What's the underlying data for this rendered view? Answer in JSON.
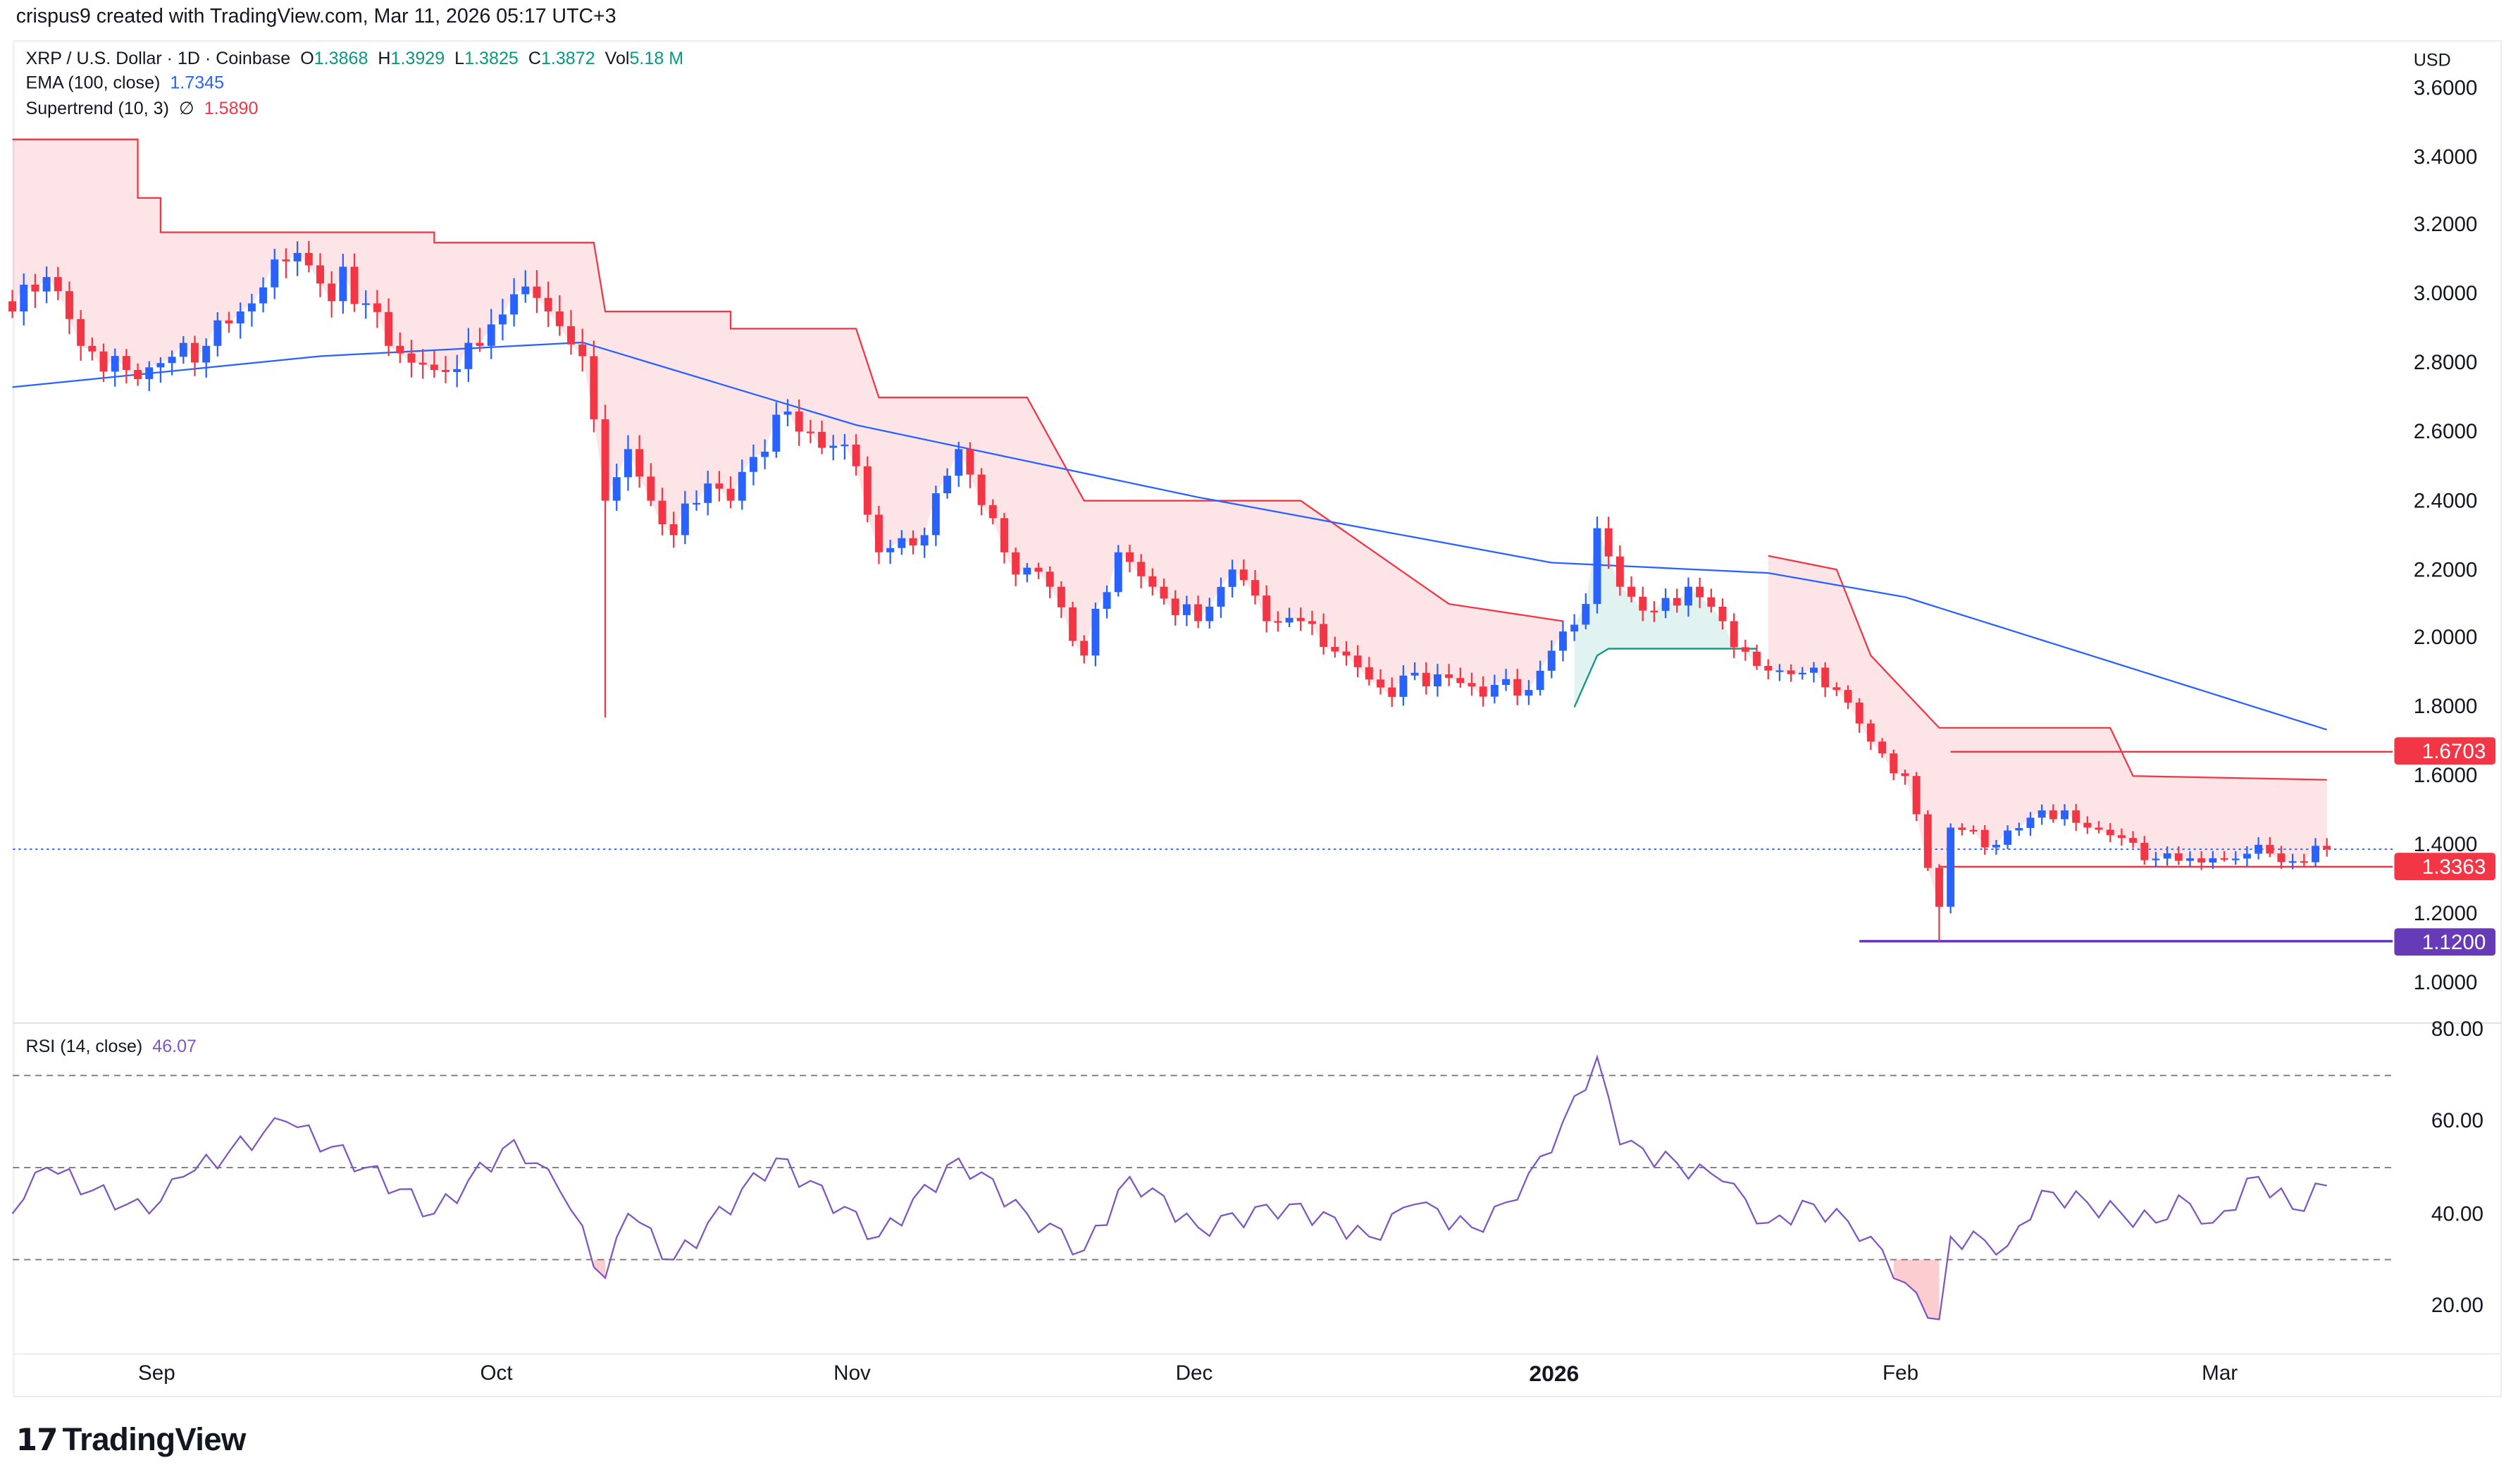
{
  "credit": "crispus9 created with TradingView.com, Mar 11, 2026 05:17 UTC+3",
  "legend": {
    "symbol": "XRP / U.S. Dollar · 1D · Coinbase",
    "open_label": "O",
    "open": "1.3868",
    "high_label": "H",
    "high": "1.3929",
    "low_label": "L",
    "low": "1.3825",
    "close_label": "C",
    "close": "1.3872",
    "vol_label": "Vol",
    "vol": "5.18 M",
    "ema_label": "EMA (100, close)",
    "ema_value": "1.7345",
    "supertrend_label": "Supertrend (10, 3)",
    "supertrend_icon": "∅",
    "supertrend_value": "1.5890",
    "rsi_label": "RSI (14, close)",
    "rsi_value": "46.07"
  },
  "currency": "USD",
  "brand": "TradingView",
  "colors": {
    "up": "#2962ff",
    "down": "#f23645",
    "ema": "#2962ff",
    "supertrend_down": "#f23645",
    "supertrend_up": "#089981",
    "rsi": "#7e57c2",
    "support": "#673ab7"
  },
  "chart_data": [
    {
      "type": "candlestick",
      "ylim": [
        1.0,
        3.6
      ],
      "price_ticks": [
        "3.6000",
        "3.4000",
        "3.2000",
        "3.0000",
        "2.8000",
        "2.6000",
        "2.4000",
        "2.2000",
        "2.0000",
        "1.8000",
        "1.6000",
        "1.4000",
        "1.2000",
        "1.0000"
      ],
      "x_ticks": [
        "Sep",
        "Oct",
        "Nov",
        "Dec",
        "2026",
        "Feb",
        "Mar"
      ],
      "close_keypoints": [
        [
          "2025-08-19",
          2.95
        ],
        [
          "2025-08-22",
          3.05
        ],
        [
          "2025-08-25",
          2.85
        ],
        [
          "2025-08-29",
          2.78
        ],
        [
          "2025-09-01",
          2.8
        ],
        [
          "2025-09-05",
          2.85
        ],
        [
          "2025-09-08",
          2.95
        ],
        [
          "2025-09-10",
          3.02
        ],
        [
          "2025-09-13",
          3.12
        ],
        [
          "2025-09-16",
          2.98
        ],
        [
          "2025-09-17",
          3.08
        ],
        [
          "2025-09-21",
          2.85
        ],
        [
          "2025-09-25",
          2.78
        ],
        [
          "2025-09-29",
          2.85
        ],
        [
          "2025-10-02",
          3.0
        ],
        [
          "2025-10-05",
          2.95
        ],
        [
          "2025-10-08",
          2.82
        ],
        [
          "2025-10-10",
          2.4
        ],
        [
          "2025-10-12",
          2.55
        ],
        [
          "2025-10-14",
          2.4
        ],
        [
          "2025-10-16",
          2.3
        ],
        [
          "2025-10-19",
          2.45
        ],
        [
          "2025-10-21",
          2.4
        ],
        [
          "2025-10-25",
          2.65
        ],
        [
          "2025-10-28",
          2.6
        ],
        [
          "2025-11-01",
          2.5
        ],
        [
          "2025-11-03",
          2.25
        ],
        [
          "2025-11-07",
          2.3
        ],
        [
          "2025-11-10",
          2.55
        ],
        [
          "2025-11-14",
          2.25
        ],
        [
          "2025-11-18",
          2.15
        ],
        [
          "2025-11-21",
          1.95
        ],
        [
          "2025-11-24",
          2.25
        ],
        [
          "2025-11-27",
          2.15
        ],
        [
          "2025-12-01",
          2.05
        ],
        [
          "2025-12-04",
          2.2
        ],
        [
          "2025-12-07",
          2.05
        ],
        [
          "2025-12-10",
          2.05
        ],
        [
          "2025-12-14",
          1.95
        ],
        [
          "2025-12-18",
          1.83
        ],
        [
          "2025-12-20",
          1.9
        ],
        [
          "2025-12-25",
          1.86
        ],
        [
          "2025-12-30",
          1.85
        ],
        [
          "2026-01-02",
          2.02
        ],
        [
          "2026-01-04",
          2.1
        ],
        [
          "2026-01-05",
          2.32
        ],
        [
          "2026-01-07",
          2.15
        ],
        [
          "2026-01-10",
          2.08
        ],
        [
          "2026-01-13",
          2.15
        ],
        [
          "2026-01-16",
          2.05
        ],
        [
          "2026-01-19",
          1.92
        ],
        [
          "2026-01-23",
          1.9
        ],
        [
          "2026-01-26",
          1.85
        ],
        [
          "2026-01-29",
          1.7
        ],
        [
          "2026-02-01",
          1.6
        ],
        [
          "2026-02-04",
          1.22
        ],
        [
          "2026-02-05",
          1.45
        ],
        [
          "2026-02-09",
          1.4
        ],
        [
          "2026-02-13",
          1.5
        ],
        [
          "2026-02-17",
          1.45
        ],
        [
          "2026-02-20",
          1.42
        ],
        [
          "2026-02-23",
          1.36
        ],
        [
          "2026-03-01",
          1.36
        ],
        [
          "2026-03-04",
          1.4
        ],
        [
          "2026-03-06",
          1.35
        ],
        [
          "2026-03-10",
          1.3872
        ]
      ],
      "long_wicks": [
        [
          "2025-10-10",
          1.77
        ],
        [
          "2026-02-04",
          1.12
        ]
      ],
      "ema_100": [
        [
          "2025-08-19",
          2.73
        ],
        [
          "2025-09-15",
          2.82
        ],
        [
          "2025-10-08",
          2.86
        ],
        [
          "2025-11-01",
          2.62
        ],
        [
          "2025-12-01",
          2.41
        ],
        [
          "2026-01-01",
          2.22
        ],
        [
          "2026-01-20",
          2.19
        ],
        [
          "2026-02-01",
          2.12
        ],
        [
          "2026-03-10",
          1.7345
        ]
      ],
      "supertrend": [
        {
          "trend": "down",
          "points": [
            [
              "2025-08-19",
              3.45
            ],
            [
              "2025-08-30",
              3.45
            ],
            [
              "2025-08-30",
              3.28
            ],
            [
              "2025-09-01",
              3.28
            ],
            [
              "2025-09-01",
              3.18
            ],
            [
              "2025-09-25",
              3.18
            ],
            [
              "2025-09-25",
              3.15
            ],
            [
              "2025-10-09",
              3.15
            ],
            [
              "2025-10-10",
              2.95
            ],
            [
              "2025-10-21",
              2.95
            ],
            [
              "2025-10-21",
              2.9
            ],
            [
              "2025-11-01",
              2.9
            ],
            [
              "2025-11-03",
              2.7
            ],
            [
              "2025-11-16",
              2.7
            ],
            [
              "2025-11-21",
              2.4
            ],
            [
              "2025-12-10",
              2.4
            ],
            [
              "2025-12-23",
              2.1
            ],
            [
              "2026-01-02",
              2.05
            ]
          ]
        },
        {
          "trend": "up",
          "points": [
            [
              "2026-01-03",
              1.8
            ],
            [
              "2026-01-05",
              1.95
            ],
            [
              "2026-01-06",
              1.97
            ],
            [
              "2026-01-19",
              1.97
            ]
          ]
        },
        {
          "trend": "down",
          "points": [
            [
              "2026-01-20",
              2.24
            ],
            [
              "2026-01-26",
              2.2
            ],
            [
              "2026-01-29",
              1.95
            ],
            [
              "2026-02-04",
              1.74
            ],
            [
              "2026-02-19",
              1.74
            ],
            [
              "2026-02-21",
              1.6
            ],
            [
              "2026-03-10",
              1.589
            ]
          ]
        }
      ],
      "levels": [
        {
          "label": "1.6703",
          "value": 1.6703,
          "color": "#f23645",
          "from": "2026-02-05"
        },
        {
          "label": "1.3363",
          "value": 1.3363,
          "color": "#f23645",
          "from": "2026-02-04"
        },
        {
          "label": "1.1200",
          "value": 1.12,
          "color": "#673ab7",
          "from": "2026-01-28"
        }
      ],
      "last_price": 1.3872
    },
    {
      "type": "line",
      "ylim": [
        10,
        80
      ],
      "rsi_ticks": [
        "80.00",
        "60.00",
        "40.00",
        "20.00"
      ],
      "bands": [
        70,
        50,
        30
      ],
      "rsi": [
        [
          "2025-08-19",
          40
        ],
        [
          "2025-08-22",
          50
        ],
        [
          "2025-08-26",
          45
        ],
        [
          "2025-08-31",
          40
        ],
        [
          "2025-09-03",
          48
        ],
        [
          "2025-09-12",
          60
        ],
        [
          "2025-09-19",
          50
        ],
        [
          "2025-09-25",
          40
        ],
        [
          "2025-10-02",
          56
        ],
        [
          "2025-10-06",
          45
        ],
        [
          "2025-10-10",
          26
        ],
        [
          "2025-10-12",
          40
        ],
        [
          "2025-10-16",
          30
        ],
        [
          "2025-10-25",
          52
        ],
        [
          "2025-11-03",
          35
        ],
        [
          "2025-11-10",
          52
        ],
        [
          "2025-11-16",
          40
        ],
        [
          "2025-11-21",
          32
        ],
        [
          "2025-11-25",
          48
        ],
        [
          "2025-12-01",
          37
        ],
        [
          "2025-12-09",
          42
        ],
        [
          "2025-12-16",
          35
        ],
        [
          "2025-12-20",
          42
        ],
        [
          "2025-12-25",
          37
        ],
        [
          "2025-12-29",
          43
        ],
        [
          "2026-01-02",
          60
        ],
        [
          "2026-01-05",
          74
        ],
        [
          "2026-01-07",
          55
        ],
        [
          "2026-01-12",
          51
        ],
        [
          "2026-01-16",
          47
        ],
        [
          "2026-01-20",
          38
        ],
        [
          "2026-01-24",
          42
        ],
        [
          "2026-01-29",
          35
        ],
        [
          "2026-02-01",
          25
        ],
        [
          "2026-02-04",
          17
        ],
        [
          "2026-02-05",
          35
        ],
        [
          "2026-02-10",
          33
        ],
        [
          "2026-02-13",
          45
        ],
        [
          "2026-02-20",
          40
        ],
        [
          "2026-02-23",
          38
        ],
        [
          "2026-02-25",
          44
        ],
        [
          "2026-02-28",
          38
        ],
        [
          "2026-03-04",
          48
        ],
        [
          "2026-03-07",
          41
        ],
        [
          "2026-03-10",
          46.07
        ]
      ]
    }
  ]
}
